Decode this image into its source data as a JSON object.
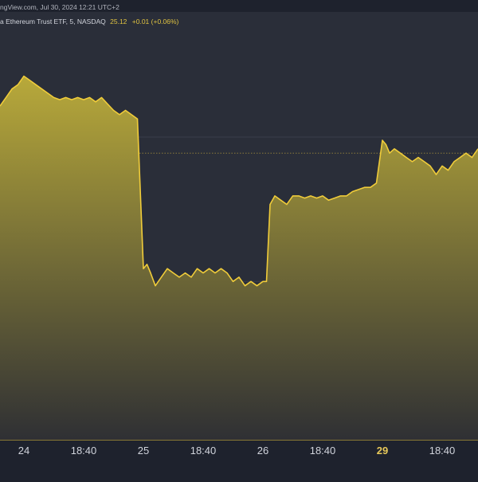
{
  "caption": {
    "source": "ngView.com, Jul 30, 2024 12:21 UTC+2",
    "symbol": "a Ethereum Trust ETF, 5, NASDAQ",
    "price": "25.12",
    "change": "+0.01 (+0.06%)"
  },
  "colors": {
    "background": "#1e222d",
    "plot_background": "#2a2e39",
    "line": "#f0cc3a",
    "fill_top": "#b8a93a",
    "fill_bottom": "#2f3034",
    "axis_text": "#d1d4dc",
    "axis_bold_text": "#e8c95a",
    "gridline": "#3a3e4a",
    "dotted_line": "#8a7a3a"
  },
  "chart_data": {
    "type": "area",
    "title": "",
    "xlabel": "",
    "ylabel": "",
    "ylim": [
      0,
      100
    ],
    "grid": true,
    "x_ticks": [
      {
        "label": "24",
        "x": 2,
        "bold": false
      },
      {
        "label": "18:40",
        "x": 7,
        "bold": false
      },
      {
        "label": "25",
        "x": 12,
        "bold": false
      },
      {
        "label": "18:40",
        "x": 17,
        "bold": false
      },
      {
        "label": "26",
        "x": 22,
        "bold": false
      },
      {
        "label": "18:40",
        "x": 27,
        "bold": false
      },
      {
        "label": "29",
        "x": 32,
        "bold": true
      },
      {
        "label": "18:40",
        "x": 37,
        "bold": false
      }
    ],
    "horizontal_lines": [
      {
        "y": 67,
        "style": "dotted"
      },
      {
        "y": 37,
        "style": "solid"
      }
    ],
    "series": [
      {
        "x": [
          0,
          0.5,
          1,
          1.5,
          2,
          2.5,
          3,
          3.5,
          4,
          4.5,
          5,
          5.5,
          6,
          6.5,
          7,
          7.5,
          8,
          8.5,
          9,
          9.5,
          10,
          10.5,
          11,
          11.5,
          12,
          12.3,
          12.6,
          13,
          13.5,
          14,
          14.5,
          15,
          15.5,
          16,
          16.5,
          17,
          17.5,
          18,
          18.5,
          19,
          19.5,
          20,
          20.5,
          21,
          21.5,
          22,
          22.3,
          22.6,
          23,
          23.5,
          24,
          24.5,
          25,
          25.5,
          26,
          26.5,
          27,
          27.5,
          28,
          28.5,
          29,
          29.5,
          30,
          30.5,
          31,
          31.5,
          32,
          32.3,
          32.6,
          33,
          33.5,
          34,
          34.5,
          35,
          35.5,
          36,
          36.5,
          37,
          37.5,
          38,
          38.5,
          39,
          39.5,
          40
        ],
        "values": [
          78,
          80,
          82,
          83,
          85,
          84,
          83,
          82,
          81,
          80,
          79.5,
          80,
          79.5,
          80,
          79.5,
          80,
          79,
          80,
          78.5,
          77,
          76,
          77,
          76,
          75,
          40,
          41,
          39,
          36,
          38,
          40,
          39,
          38,
          39,
          38,
          40,
          39,
          40,
          39,
          40,
          39,
          37,
          38,
          36,
          37,
          36,
          37,
          37,
          55,
          57,
          56,
          55,
          57,
          57,
          56.5,
          57,
          56.5,
          57,
          56,
          56.5,
          57,
          57,
          58,
          58.5,
          59,
          59,
          60,
          70,
          69,
          67,
          68,
          67,
          66,
          65,
          66,
          65,
          64,
          62,
          64,
          63,
          65,
          66,
          67,
          66,
          68
        ]
      }
    ],
    "xlim": [
      0,
      40
    ]
  }
}
